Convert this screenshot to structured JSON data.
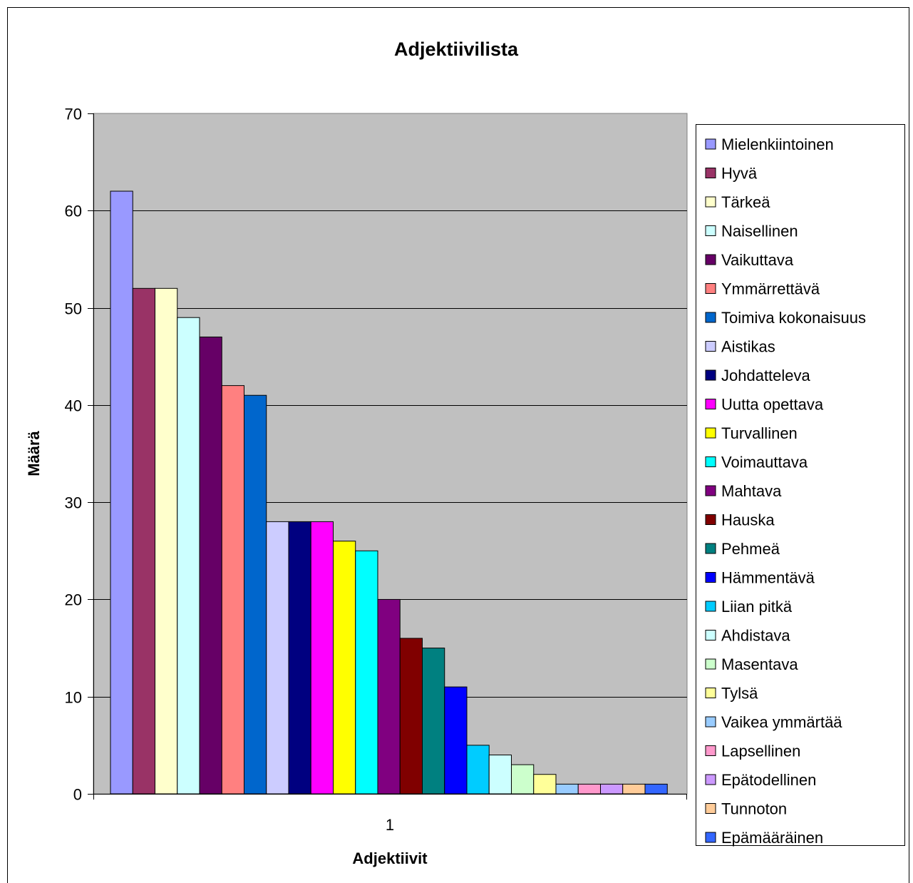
{
  "chart_data": {
    "type": "bar",
    "title": "Adjektiivilista",
    "xlabel": "Adjektiivit",
    "ylabel": "Määrä",
    "categories": [
      "1"
    ],
    "ylim": [
      0,
      70
    ],
    "yticks": [
      "0",
      "10",
      "20",
      "30",
      "40",
      "50",
      "60",
      "70"
    ],
    "grid": true,
    "legend_position": "right",
    "series": [
      {
        "name": "Mielenkiintoinen",
        "values": [
          62
        ],
        "color": "#9999FF"
      },
      {
        "name": "Hyvä",
        "values": [
          52
        ],
        "color": "#993366"
      },
      {
        "name": "Tärkeä",
        "values": [
          52
        ],
        "color": "#FFFFCC"
      },
      {
        "name": "Naisellinen",
        "values": [
          49
        ],
        "color": "#CCFFFF"
      },
      {
        "name": "Vaikuttava",
        "values": [
          47
        ],
        "color": "#660066"
      },
      {
        "name": "Ymmärrettävä",
        "values": [
          42
        ],
        "color": "#FF8080"
      },
      {
        "name": "Toimiva kokonaisuus",
        "values": [
          41
        ],
        "color": "#0066CC"
      },
      {
        "name": "Aistikas",
        "values": [
          28
        ],
        "color": "#CCCCFF"
      },
      {
        "name": "Johdatteleva",
        "values": [
          28
        ],
        "color": "#000080"
      },
      {
        "name": "Uutta opettava",
        "values": [
          28
        ],
        "color": "#FF00FF"
      },
      {
        "name": "Turvallinen",
        "values": [
          26
        ],
        "color": "#FFFF00"
      },
      {
        "name": "Voimauttava",
        "values": [
          25
        ],
        "color": "#00FFFF"
      },
      {
        "name": "Mahtava",
        "values": [
          20
        ],
        "color": "#800080"
      },
      {
        "name": "Hauska",
        "values": [
          16
        ],
        "color": "#800000"
      },
      {
        "name": "Pehmeä",
        "values": [
          15
        ],
        "color": "#008080"
      },
      {
        "name": "Hämmentävä",
        "values": [
          11
        ],
        "color": "#0000FF"
      },
      {
        "name": "Liian pitkä",
        "values": [
          5
        ],
        "color": "#00CCFF"
      },
      {
        "name": "Ahdistava",
        "values": [
          4
        ],
        "color": "#CCFFFF"
      },
      {
        "name": "Masentava",
        "values": [
          3
        ],
        "color": "#CCFFCC"
      },
      {
        "name": "Tylsä",
        "values": [
          2
        ],
        "color": "#FFFF99"
      },
      {
        "name": "Vaikea ymmärtää",
        "values": [
          1
        ],
        "color": "#99CCFF"
      },
      {
        "name": "Lapsellinen",
        "values": [
          1
        ],
        "color": "#FF99CC"
      },
      {
        "name": "Epätodellinen",
        "values": [
          1
        ],
        "color": "#CC99FF"
      },
      {
        "name": "Tunnoton",
        "values": [
          1
        ],
        "color": "#FFCC99"
      },
      {
        "name": "Epämääräinen",
        "values": [
          1
        ],
        "color": "#3366FF"
      }
    ]
  }
}
